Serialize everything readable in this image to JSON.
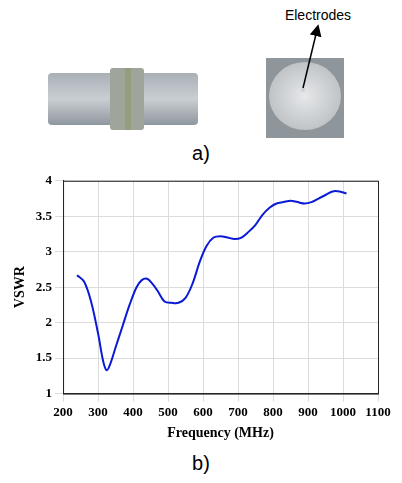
{
  "figure": {
    "panel_a": {
      "label": "a)",
      "annotation": "Electrodes"
    },
    "panel_b": {
      "label": "b)"
    }
  },
  "chart_data": {
    "type": "line",
    "x_label": "Frequency (MHz)",
    "y_label": "VSWR",
    "x": [
      240,
      260,
      280,
      300,
      315,
      325,
      335,
      350,
      370,
      390,
      410,
      425,
      440,
      455,
      470,
      490,
      510,
      530,
      550,
      570,
      590,
      610,
      630,
      650,
      670,
      690,
      710,
      730,
      750,
      770,
      790,
      810,
      830,
      850,
      870,
      890,
      910,
      930,
      950,
      970,
      990,
      1010
    ],
    "values": [
      2.67,
      2.58,
      2.3,
      1.85,
      1.45,
      1.33,
      1.42,
      1.65,
      1.95,
      2.25,
      2.5,
      2.6,
      2.62,
      2.55,
      2.45,
      2.3,
      2.28,
      2.28,
      2.35,
      2.55,
      2.85,
      3.08,
      3.2,
      3.22,
      3.2,
      3.18,
      3.2,
      3.28,
      3.38,
      3.52,
      3.62,
      3.68,
      3.7,
      3.72,
      3.7,
      3.68,
      3.7,
      3.75,
      3.8,
      3.85,
      3.85,
      3.82
    ],
    "color": "#0a1ad6",
    "xlim": [
      200,
      1100
    ],
    "xticks": [
      200,
      300,
      400,
      500,
      600,
      700,
      800,
      900,
      1000,
      1100
    ],
    "ylim": [
      1,
      4
    ],
    "yticks": [
      1,
      1.5,
      2,
      2.5,
      3,
      3.5,
      4
    ],
    "grid": true
  }
}
